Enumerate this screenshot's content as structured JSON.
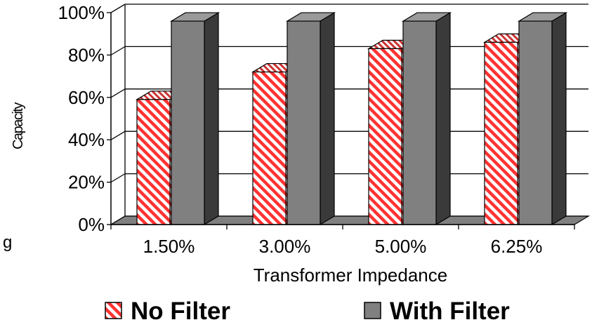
{
  "chart_data": {
    "type": "bar",
    "title": "",
    "xlabel": "Transformer Impedance",
    "ylabel": "Capacity",
    "categories": [
      "1.50%",
      "3.00%",
      "5.00%",
      "6.25%"
    ],
    "series": [
      {
        "name": "No Filter",
        "values": [
          59,
          72,
          83,
          86
        ],
        "color": "#ff3333",
        "fill": "diagonal-hatch red/white"
      },
      {
        "name": "With Filter",
        "values": [
          96,
          96,
          96,
          96
        ],
        "color": "#808080",
        "fill": "solid gray"
      }
    ],
    "ylim": [
      0,
      100
    ],
    "yticks": [
      "0%",
      "20%",
      "40%",
      "60%",
      "80%",
      "100%"
    ],
    "grid": true,
    "style": "3d",
    "legend": "bottom",
    "stray_text": "g"
  },
  "colors": {
    "no_filter_stripe": "#ff3333",
    "with_filter_face": "#808080",
    "with_filter_side": "#3a3a3a",
    "with_filter_top": "#9a9a9a",
    "floor": "#808080",
    "axis": "#000000"
  }
}
